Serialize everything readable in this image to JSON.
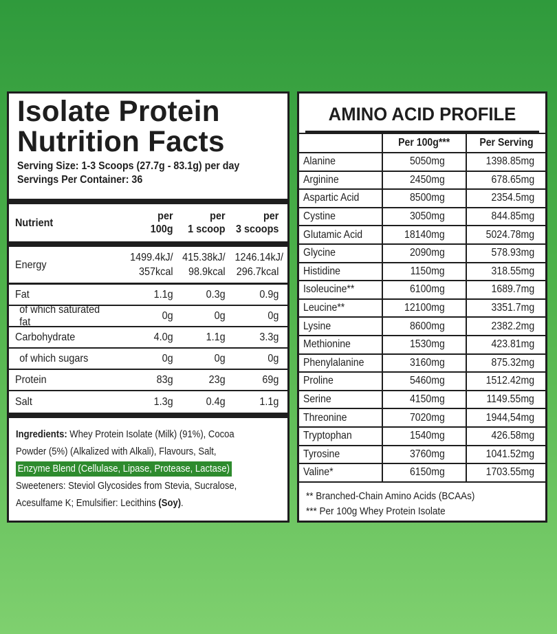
{
  "nutrition": {
    "title_line1": "Isolate Protein",
    "title_line2": "Nutrition Facts",
    "serving_size": "Serving Size: 1-3 Scoops (27.7g - 83.1g) per day",
    "servings_per_container": "Servings Per Container: 36",
    "headers": {
      "nutrient": "Nutrient",
      "c1a": "per",
      "c1b": "100g",
      "c2a": "per",
      "c2b": "1 scoop",
      "c3a": "per",
      "c3b": "3 scoops"
    },
    "energy": {
      "name": "Energy",
      "v1a": "1499.4kJ/",
      "v1b": "357kcal",
      "v2a": "415.38kJ/",
      "v2b": "98.9kcal",
      "v3a": "1246.14kJ/",
      "v3b": "296.7kcal"
    },
    "rows": [
      {
        "name": "Fat",
        "v1": "1.1g",
        "v2": "0.3g",
        "v3": "0.9g"
      },
      {
        "name": "of which saturated fat",
        "v1": "0g",
        "v2": "0g",
        "v3": "0g"
      },
      {
        "name": "Carbohydrate",
        "v1": "4.0g",
        "v2": "1.1g",
        "v3": "3.3g"
      },
      {
        "name": "of which sugars",
        "v1": "0g",
        "v2": "0g",
        "v3": "0g"
      },
      {
        "name": "Protein",
        "v1": "83g",
        "v2": "23g",
        "v3": "69g"
      },
      {
        "name": "Salt",
        "v1": "1.3g",
        "v2": "0.4g",
        "v3": "1.1g"
      }
    ],
    "ingredients": {
      "label": "Ingredients:",
      "line1": " Whey Protein Isolate (Milk) (91%), Cocoa",
      "line2": "Powder (5%) (Alkalized with Alkali), Flavours, Salt,",
      "highlight": "Enzyme Blend (Cellulase, Lipase, Protease, Lactase)",
      "line4": "Sweeteners: Steviol Glycosides from Stevia, Sucralose,",
      "line5": "Acesulfame K; Emulsifier: Lecithins ",
      "allergen": "(Soy)",
      "end": "."
    },
    "highlight_color": "#2e8b2e"
  },
  "amino": {
    "title": "AMINO ACID PROFILE",
    "headers": [
      "",
      "Per 100g***",
      "Per Serving"
    ],
    "rows": [
      [
        "Alanine",
        "5050mg",
        "1398.85mg"
      ],
      [
        "Arginine",
        "2450mg",
        "678.65mg"
      ],
      [
        "Aspartic Acid",
        "8500mg",
        "2354.5mg"
      ],
      [
        "Cystine",
        "3050mg",
        "844.85mg"
      ],
      [
        "Glutamic Acid",
        "18140mg",
        "5024.78mg"
      ],
      [
        "Glycine",
        "2090mg",
        "578.93mg"
      ],
      [
        "Histidine",
        "1150mg",
        "318.55mg"
      ],
      [
        "Isoleucine**",
        "6100mg",
        "1689.7mg"
      ],
      [
        "Leucine**",
        "12100mg",
        "3351.7mg"
      ],
      [
        "Lysine",
        "8600mg",
        "2382.2mg"
      ],
      [
        "Methionine",
        "1530mg",
        "423.81mg"
      ],
      [
        "Phenylalanine",
        "3160mg",
        "875.32mg"
      ],
      [
        "Proline",
        "5460mg",
        "1512.42mg"
      ],
      [
        "Serine",
        "4150mg",
        "1149.55mg"
      ],
      [
        "Threonine",
        "7020mg",
        "1944,54mg"
      ],
      [
        "Tryptophan",
        "1540mg",
        "426.58mg"
      ],
      [
        "Tyrosine",
        "3760mg",
        "1041.52mg"
      ],
      [
        "Valine*",
        "6150mg",
        "1703.55mg"
      ]
    ],
    "footnote1": "** Branched-Chain Amino Acids (BCAAs)",
    "footnote2": "*** Per 100g Whey Protein Isolate"
  }
}
